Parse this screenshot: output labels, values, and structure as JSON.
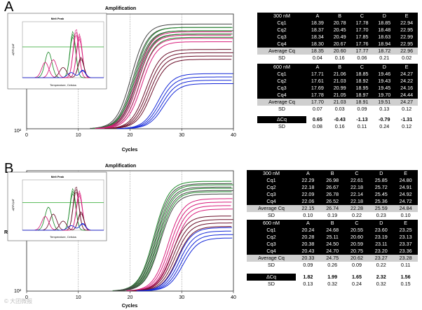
{
  "panels": [
    {
      "letter": "A",
      "title": "Amplification",
      "x_axis_label": "Cycles",
      "y_axis_label": "",
      "x_ticks": [
        "0",
        "10",
        "20",
        "30",
        "40"
      ],
      "y_tick_bottom": "10²",
      "inset": {
        "title": "Melt Peak",
        "x_label": "Temperature, Celsius",
        "y_label": "-d(RFU)/dT",
        "x_ticks": [
          "65",
          "70",
          "75",
          "80",
          "85",
          "90",
          "95"
        ],
        "y_ticks": [
          "0",
          "500",
          "1000",
          "1500",
          "2000",
          "2500"
        ]
      },
      "tables": [
        {
          "head": [
            "300 nM",
            "A",
            "B",
            "C",
            "D",
            "E"
          ],
          "rows": [
            {
              "label": "Cq1",
              "vals": [
                "18.39",
                "20.78",
                "17.78",
                "18.85",
                "22.94"
              ]
            },
            {
              "label": "Cq2",
              "vals": [
                "18.37",
                "20.45",
                "17.70",
                "18.48",
                "22.95"
              ]
            },
            {
              "label": "Cq3",
              "vals": [
                "18.34",
                "20.49",
                "17.85",
                "18.63",
                "22.99"
              ]
            },
            {
              "label": "Cq4",
              "vals": [
                "18.30",
                "20.67",
                "17.76",
                "18.94",
                "22.95"
              ]
            }
          ],
          "avg": {
            "label": "Average Cq",
            "vals": [
              "18.35",
              "20.60",
              "17.77",
              "18.72",
              "22.96"
            ]
          },
          "sd": {
            "label": "SD",
            "vals": [
              "0.04",
              "0.16",
              "0.06",
              "0.21",
              "0.02"
            ]
          }
        },
        {
          "head": [
            "600 nM",
            "A",
            "B",
            "C",
            "D",
            "E"
          ],
          "rows": [
            {
              "label": "Cq1",
              "vals": [
                "17.71",
                "21.06",
                "18.85",
                "19.46",
                "24.27"
              ]
            },
            {
              "label": "Cq2",
              "vals": [
                "17.61",
                "21.03",
                "18.92",
                "19.43",
                "24.22"
              ]
            },
            {
              "label": "Cq3",
              "vals": [
                "17.69",
                "20.99",
                "18.95",
                "19.45",
                "24.16"
              ]
            },
            {
              "label": "Cq4",
              "vals": [
                "17.78",
                "21.05",
                "18.97",
                "19.70",
                "24.44"
              ]
            }
          ],
          "avg": {
            "label": "Average Cq",
            "vals": [
              "17.70",
              "21.03",
              "18.91",
              "19.51",
              "24.27"
            ]
          },
          "sd": {
            "label": "SD",
            "vals": [
              "0.07",
              "0.03",
              "0.09",
              "0.13",
              "0.12"
            ]
          }
        }
      ],
      "delta": {
        "label": "ΔCq",
        "vals": [
          "0.65",
          "-0.43",
          "-1.13",
          "-0.79",
          "-1.31"
        ],
        "sd_label": "SD",
        "sd_vals": [
          "0.08",
          "0.16",
          "0.11",
          "0.24",
          "0.12"
        ]
      }
    },
    {
      "letter": "B",
      "title": "Amplification",
      "x_axis_label": "Cycles",
      "y_axis_label": "RFU",
      "x_ticks": [
        "0",
        "10",
        "20",
        "30",
        "40"
      ],
      "y_tick_bottom": "10²",
      "inset": {
        "title": "Melt Peak",
        "x_label": "Temperature, Celsius",
        "y_label": "-d(RFU)/dT",
        "x_ticks": [
          "65",
          "70",
          "75",
          "80",
          "85",
          "90",
          "95"
        ],
        "y_ticks": [
          "0",
          "500",
          "1000",
          "1500",
          "2000",
          "2500"
        ]
      },
      "tables": [
        {
          "head": [
            "300 nM",
            "A",
            "B",
            "C",
            "D",
            "E"
          ],
          "rows": [
            {
              "label": "Cq1",
              "vals": [
                "22.29",
                "26.98",
                "22.61",
                "25.85",
                "24.80"
              ]
            },
            {
              "label": "Cq2",
              "vals": [
                "22.18",
                "26.67",
                "22.18",
                "25.72",
                "24.91"
              ]
            },
            {
              "label": "Cq3",
              "vals": [
                "22.09",
                "26.78",
                "22.14",
                "25.45",
                "24.92"
              ]
            },
            {
              "label": "Cq4",
              "vals": [
                "22.06",
                "26.52",
                "22.18",
                "25.36",
                "24.72"
              ]
            }
          ],
          "avg": {
            "label": "Average Cq",
            "vals": [
              "22.15",
              "26.74",
              "22.28",
              "25.59",
              "24.84"
            ]
          },
          "sd": {
            "label": "SD",
            "vals": [
              "0.10",
              "0.19",
              "0.22",
              "0.23",
              "0.10"
            ]
          }
        },
        {
          "head": [
            "600 nM",
            "A",
            "B",
            "C",
            "D",
            "E"
          ],
          "rows": [
            {
              "label": "Cq1",
              "vals": [
                "20.24",
                "24.68",
                "20.55",
                "23.60",
                "23.25"
              ]
            },
            {
              "label": "Cq2",
              "vals": [
                "20.28",
                "25.11",
                "20.60",
                "23.19",
                "23.13"
              ]
            },
            {
              "label": "Cq3",
              "vals": [
                "20.38",
                "24.50",
                "20.59",
                "23.11",
                "23.37"
              ]
            },
            {
              "label": "Cq4",
              "vals": [
                "20.43",
                "24.70",
                "20.75",
                "23.20",
                "23.36"
              ]
            }
          ],
          "avg": {
            "label": "Average Cq",
            "vals": [
              "20.33",
              "24.75",
              "20.62",
              "23.27",
              "23.28"
            ]
          },
          "sd": {
            "label": "SD",
            "vals": [
              "0.09",
              "0.26",
              "0.09",
              "0.22",
              "0.11"
            ]
          }
        }
      ],
      "delta": {
        "label": "ΔCq",
        "vals": [
          "1.82",
          "1.99",
          "1.65",
          "2.32",
          "1.56"
        ],
        "sd_label": "SD",
        "sd_vals": [
          "0.13",
          "0.32",
          "0.24",
          "0.32",
          "0.15"
        ]
      }
    }
  ],
  "chart_data": [
    {
      "type": "line",
      "title": "Amplification",
      "xlabel": "Cycles",
      "ylabel": "",
      "xlim": [
        0,
        40
      ],
      "yscale": "log",
      "threshold_cycles": [
        10,
        20,
        30
      ],
      "series": [
        {
          "name": "C",
          "color": "#444444",
          "cq": 17.77,
          "plateau": 0.95
        },
        {
          "name": "A",
          "color": "#1f8a2c",
          "cq": 18.35,
          "plateau": 0.92
        },
        {
          "name": "D",
          "color": "#d81b7a",
          "cq": 18.72,
          "plateau": 0.88
        },
        {
          "name": "B",
          "color": "#6b0f2a",
          "cq": 20.6,
          "plateau": 0.72
        },
        {
          "name": "E",
          "color": "#1428d8",
          "cq": 22.96,
          "plateau": 0.5
        }
      ],
      "inset": {
        "type": "line",
        "title": "Melt Peak",
        "xlabel": "Temperature, Celsius",
        "ylabel": "-d(RFU)/dT",
        "xlim": [
          65,
          95
        ],
        "ylim": [
          0,
          2500
        ]
      }
    },
    {
      "type": "line",
      "title": "Amplification",
      "xlabel": "Cycles",
      "ylabel": "RFU",
      "xlim": [
        0,
        40
      ],
      "yscale": "log",
      "threshold_cycles": [
        10,
        20,
        30
      ],
      "series": [
        {
          "name": "A",
          "color": "#1f8a2c",
          "cq": 22.15,
          "plateau": 0.95
        },
        {
          "name": "C",
          "color": "#444444",
          "cq": 22.28,
          "plateau": 0.93
        },
        {
          "name": "E",
          "color": "#d81b7a",
          "cq": 24.84,
          "plateau": 0.8
        },
        {
          "name": "D",
          "color": "#6b0f2a",
          "cq": 25.59,
          "plateau": 0.65
        },
        {
          "name": "B",
          "color": "#1428d8",
          "cq": 26.74,
          "plateau": 0.55
        }
      ],
      "inset": {
        "type": "line",
        "title": "Melt Peak",
        "xlabel": "Temperature, Celsius",
        "ylabel": "-d(RFU)/dT",
        "xlim": [
          65,
          95
        ],
        "ylim": [
          0,
          2500
        ]
      }
    }
  ],
  "watermark": "© 大团微报"
}
